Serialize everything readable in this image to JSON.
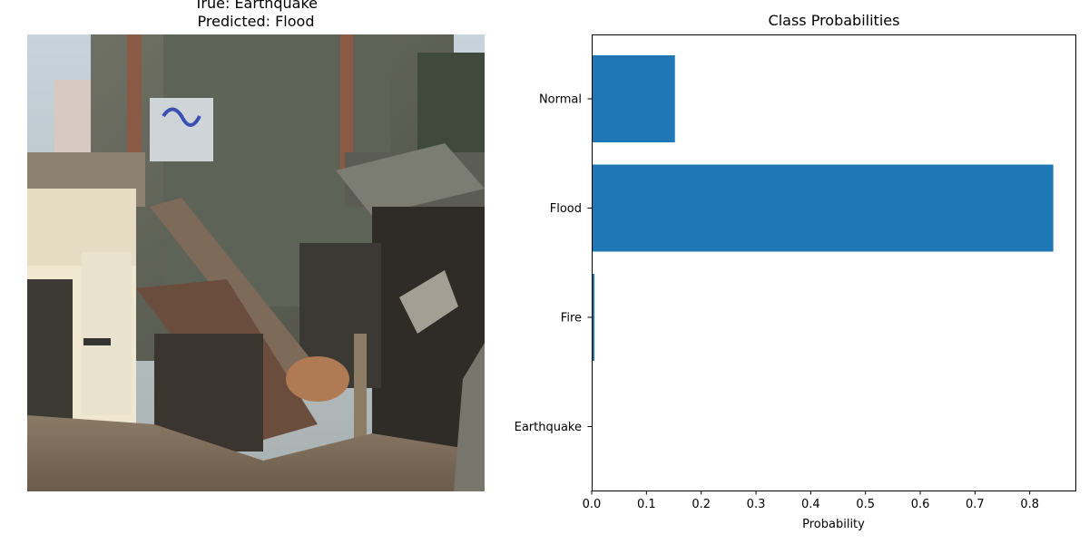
{
  "image_panel": {
    "title_line1": "True: Earthquake",
    "title_line2": "Predicted: Flood"
  },
  "chart_data": {
    "type": "bar",
    "orientation": "horizontal",
    "title": "Class Probabilities",
    "xlabel": "Probability",
    "ylabel": "",
    "categories": [
      "Earthquake",
      "Fire",
      "Flood",
      "Normal"
    ],
    "values": [
      0.0005,
      0.005,
      0.843,
      0.152
    ],
    "xlim": [
      0,
      0.885
    ],
    "xticks": [
      "0.0",
      "0.1",
      "0.2",
      "0.3",
      "0.4",
      "0.5",
      "0.6",
      "0.7",
      "0.8"
    ],
    "bar_color": "#1f77b4",
    "grid": false
  }
}
